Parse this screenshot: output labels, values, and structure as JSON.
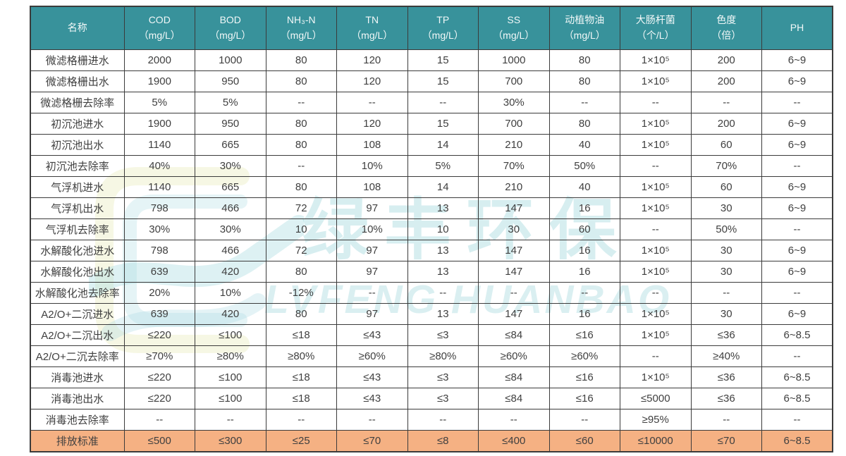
{
  "watermark": {
    "chinese": "绿丰环保",
    "english": "LVFENG HUANBAO"
  },
  "colors": {
    "header_bg": "#38929B",
    "header_text": "#F2F8F8",
    "highlight_bg": "#F5B183",
    "border": "#3B3B3B",
    "body_text": "#3F3F3F",
    "watermark": "#8BCDD5"
  },
  "table": {
    "columns": [
      {
        "label": "名称",
        "unit": ""
      },
      {
        "label": "COD",
        "unit": "（mg/L）"
      },
      {
        "label": "BOD",
        "unit": "（mg/L）"
      },
      {
        "label": "NH₃-N",
        "unit": "（mg/L）"
      },
      {
        "label": "TN",
        "unit": "（mg/L）"
      },
      {
        "label": "TP",
        "unit": "（mg/L）"
      },
      {
        "label": "SS",
        "unit": "（mg/L）"
      },
      {
        "label": "动植物油",
        "unit": "（mg/L）"
      },
      {
        "label": "大肠杆菌",
        "unit": "（个/L）"
      },
      {
        "label": "色度",
        "unit": "（倍）"
      },
      {
        "label": "PH",
        "unit": ""
      }
    ],
    "rows": [
      {
        "name": "微滤格栅进水",
        "highlight": false,
        "values": [
          "2000",
          "1000",
          "80",
          "120",
          "15",
          "1000",
          "80",
          "1×10⁵",
          "200",
          "6~9"
        ]
      },
      {
        "name": "微滤格栅出水",
        "highlight": false,
        "values": [
          "1900",
          "950",
          "80",
          "120",
          "15",
          "700",
          "80",
          "1×10⁵",
          "200",
          "6~9"
        ]
      },
      {
        "name": "微滤格栅去除率",
        "highlight": false,
        "values": [
          "5%",
          "5%",
          "--",
          "--",
          "--",
          "30%",
          "--",
          "--",
          "--",
          "--"
        ]
      },
      {
        "name": "初沉池进水",
        "highlight": false,
        "values": [
          "1900",
          "950",
          "80",
          "120",
          "15",
          "700",
          "80",
          "1×10⁵",
          "200",
          "6~9"
        ]
      },
      {
        "name": "初沉池出水",
        "highlight": false,
        "values": [
          "1140",
          "665",
          "80",
          "108",
          "14",
          "210",
          "40",
          "1×10⁵",
          "60",
          "6~9"
        ]
      },
      {
        "name": "初沉池去除率",
        "highlight": false,
        "values": [
          "40%",
          "30%",
          "--",
          "10%",
          "5%",
          "70%",
          "50%",
          "--",
          "70%",
          "--"
        ]
      },
      {
        "name": "气浮机进水",
        "highlight": false,
        "values": [
          "1140",
          "665",
          "80",
          "108",
          "14",
          "210",
          "40",
          "1×10⁵",
          "60",
          "6~9"
        ]
      },
      {
        "name": "气浮机出水",
        "highlight": false,
        "values": [
          "798",
          "466",
          "72",
          "97",
          "13",
          "147",
          "16",
          "1×10⁵",
          "30",
          "6~9"
        ]
      },
      {
        "name": "气浮机去除率",
        "highlight": false,
        "values": [
          "30%",
          "30%",
          "10",
          "10%",
          "10",
          "30",
          "60",
          "--",
          "50%",
          "--"
        ]
      },
      {
        "name": "水解酸化池进水",
        "highlight": false,
        "values": [
          "798",
          "466",
          "72",
          "97",
          "13",
          "147",
          "16",
          "1×10⁵",
          "30",
          "6~9"
        ]
      },
      {
        "name": "水解酸化池出水",
        "highlight": false,
        "values": [
          "639",
          "420",
          "80",
          "97",
          "13",
          "147",
          "16",
          "1×10⁵",
          "30",
          "6~9"
        ]
      },
      {
        "name": "水解酸化池去除率",
        "highlight": false,
        "values": [
          "20%",
          "10%",
          "-12%",
          "--",
          "--",
          "--",
          "--",
          "--",
          "--",
          "--"
        ]
      },
      {
        "name": "A2/O+二沉进水",
        "highlight": false,
        "values": [
          "639",
          "420",
          "80",
          "97",
          "13",
          "147",
          "16",
          "1×10⁵",
          "30",
          "6~9"
        ]
      },
      {
        "name": "A2/O+二沉出水",
        "highlight": false,
        "values": [
          "≤220",
          "≤100",
          "≤18",
          "≤43",
          "≤3",
          "≤84",
          "≤16",
          "1×10⁵",
          "≤36",
          "6~8.5"
        ]
      },
      {
        "name": "A2/O+二沉去除率",
        "highlight": false,
        "values": [
          "≥70%",
          "≥80%",
          "≥80%",
          "≥60%",
          "≥80%",
          "≥60%",
          "≥60%",
          "--",
          "≥40%",
          "--"
        ]
      },
      {
        "name": "消毒池进水",
        "highlight": false,
        "values": [
          "≤220",
          "≤100",
          "≤18",
          "≤43",
          "≤3",
          "≤84",
          "≤16",
          "1×10⁵",
          "≤36",
          "6~8.5"
        ]
      },
      {
        "name": "消毒池出水",
        "highlight": false,
        "values": [
          "≤220",
          "≤100",
          "≤18",
          "≤43",
          "≤3",
          "≤84",
          "≤16",
          "≤5000",
          "≤36",
          "6~8.5"
        ]
      },
      {
        "name": "消毒池去除率",
        "highlight": false,
        "values": [
          "--",
          "--",
          "--",
          "--",
          "--",
          "--",
          "--",
          "≥95%",
          "--",
          "--"
        ]
      },
      {
        "name": "排放标准",
        "highlight": true,
        "values": [
          "≤500",
          "≤300",
          "≤25",
          "≤70",
          "≤8",
          "≤400",
          "≤60",
          "≤10000",
          "≤70",
          "6~8.5"
        ]
      }
    ]
  }
}
